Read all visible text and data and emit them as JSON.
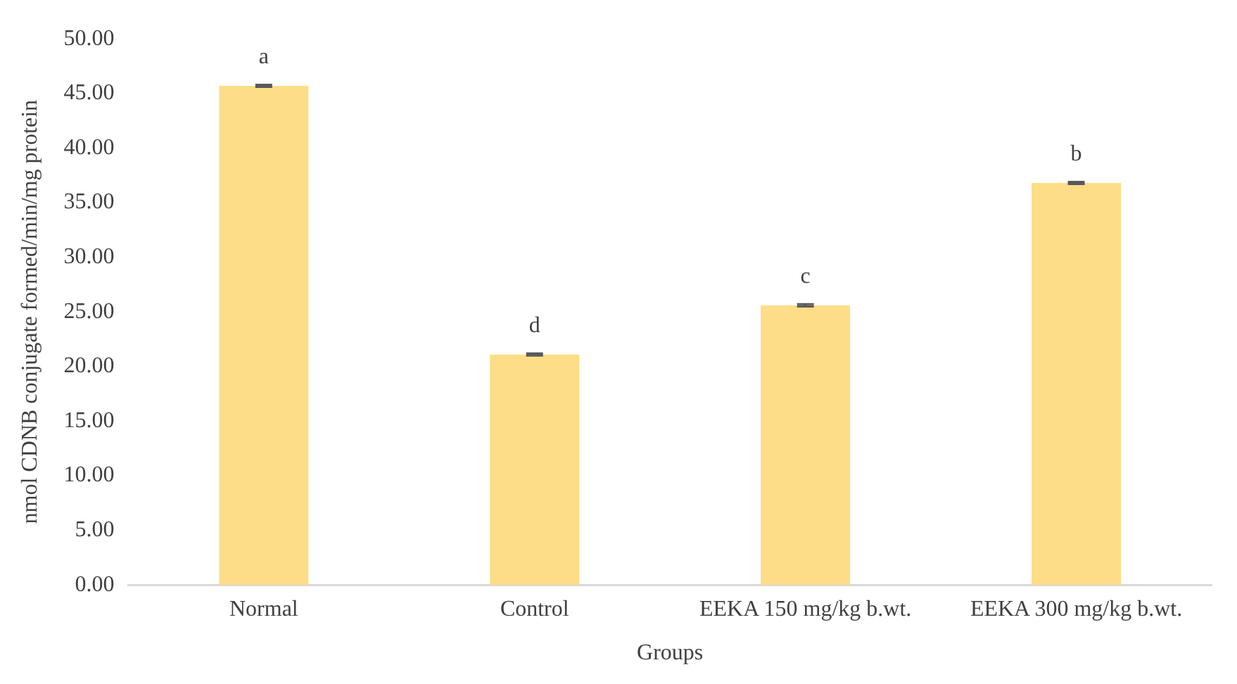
{
  "chart_data": {
    "type": "bar",
    "xlabel": "Groups",
    "ylabel": "nmol CDNB conjugate formed/min/mg protein",
    "categories": [
      "Normal",
      "Control",
      "EEKA 150 mg/kg b.wt.",
      "EEKA 300 mg/kg b.wt."
    ],
    "values": [
      45.7,
      21.1,
      25.6,
      36.8
    ],
    "errors": [
      0.1,
      0.1,
      0.1,
      0.1
    ],
    "color": "#fedd88",
    "ylim": [
      0,
      50
    ],
    "yticks": [
      {
        "value": 0,
        "label": "0.00"
      },
      {
        "value": 5,
        "label": "5.00"
      },
      {
        "value": 10,
        "label": "10.00"
      },
      {
        "value": 15,
        "label": "15.00"
      },
      {
        "value": 20,
        "label": "20.00"
      },
      {
        "value": 25,
        "label": "25.00"
      },
      {
        "value": 30,
        "label": "30.00"
      },
      {
        "value": 35,
        "label": "35.00"
      },
      {
        "value": 40,
        "label": "40.00"
      },
      {
        "value": 45,
        "label": "45.00"
      },
      {
        "value": 50,
        "label": "50.00"
      }
    ],
    "grid": false,
    "legend": false,
    "annotations": [
      {
        "text": "a",
        "x": "Normal",
        "y": 45.7
      },
      {
        "text": "d",
        "x": "Control",
        "y": 21.1
      },
      {
        "text": "c",
        "x": "EEKA 150 mg/kg b.wt.",
        "y": 25.6
      },
      {
        "text": "b",
        "x": "EEKA 300 mg/kg b.wt.",
        "y": 36.8
      }
    ]
  }
}
